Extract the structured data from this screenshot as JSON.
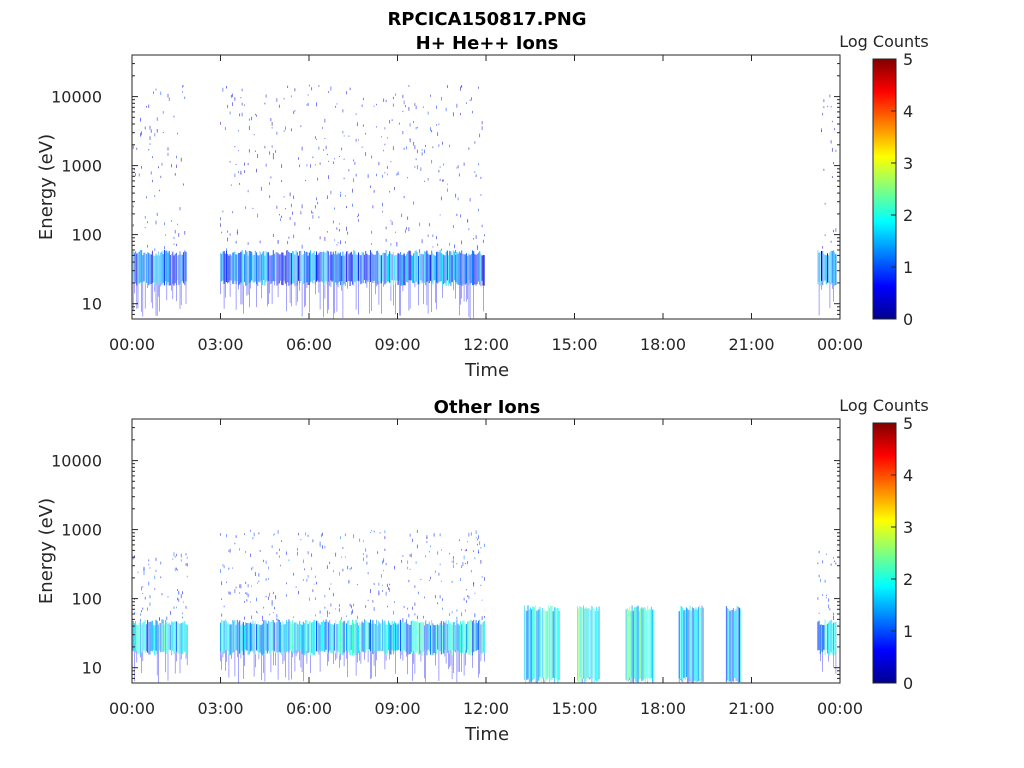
{
  "figure": {
    "title_line1": "RPCICA150817.PNG"
  },
  "colormap": {
    "name": "jet",
    "stops": [
      "#00008f",
      "#0000ff",
      "#0080ff",
      "#00ffff",
      "#80ff80",
      "#ffff00",
      "#ff8000",
      "#ff0000",
      "#800000"
    ]
  },
  "chart_data": [
    {
      "type": "heatmap",
      "title": "H+ He++ Ions",
      "xlabel": "Time",
      "ylabel": "Energy (eV)",
      "yscale": "log",
      "ylim": [
        6,
        40000
      ],
      "xlim": [
        "00:00",
        "24:00"
      ],
      "x_ticks": [
        "00:00",
        "03:00",
        "06:00",
        "09:00",
        "12:00",
        "15:00",
        "18:00",
        "21:00",
        "00:00"
      ],
      "y_ticks": [
        10,
        100,
        1000,
        10000
      ],
      "y_tick_labels": [
        "10",
        "100",
        "1000",
        "10000"
      ],
      "colorbar": {
        "label": "Log Counts",
        "range": [
          0,
          5
        ],
        "ticks": [
          "0",
          "1",
          "2",
          "3",
          "4",
          "5"
        ]
      },
      "data_intervals": [
        {
          "start_hour": 0.0,
          "end_hour": 1.85,
          "band_low_eV": 18,
          "band_high_eV": 60,
          "band_level": 1.1,
          "sparse_max_eV": 15000,
          "sparse_level": 0.6
        },
        {
          "start_hour": 3.0,
          "end_hour": 11.95,
          "band_low_eV": 18,
          "band_high_eV": 60,
          "band_level": 1.1,
          "sparse_max_eV": 15000,
          "sparse_level": 0.6
        },
        {
          "start_hour": 23.25,
          "end_hour": 23.9,
          "band_low_eV": 18,
          "band_high_eV": 60,
          "band_level": 1.1,
          "sparse_max_eV": 15000,
          "sparse_level": 0.6
        }
      ]
    },
    {
      "type": "heatmap",
      "title": "Other Ions",
      "xlabel": "Time",
      "ylabel": "Energy (eV)",
      "yscale": "log",
      "ylim": [
        6,
        40000
      ],
      "xlim": [
        "00:00",
        "24:00"
      ],
      "x_ticks": [
        "00:00",
        "03:00",
        "06:00",
        "09:00",
        "12:00",
        "15:00",
        "18:00",
        "21:00",
        "00:00"
      ],
      "y_ticks": [
        10,
        100,
        1000,
        10000
      ],
      "y_tick_labels": [
        "10",
        "100",
        "1000",
        "10000"
      ],
      "colorbar": {
        "label": "Log Counts",
        "range": [
          0,
          5
        ],
        "ticks": [
          "0",
          "1",
          "2",
          "3",
          "4",
          "5"
        ]
      },
      "data_intervals": [
        {
          "start_hour": 0.0,
          "end_hour": 1.9,
          "band_low_eV": 15,
          "band_high_eV": 50,
          "band_level": 1.6,
          "sparse_max_eV": 500,
          "sparse_level": 0.8
        },
        {
          "start_hour": 3.0,
          "end_hour": 11.95,
          "band_low_eV": 15,
          "band_high_eV": 50,
          "band_level": 1.6,
          "sparse_max_eV": 1000,
          "sparse_level": 0.8
        },
        {
          "start_hour": 13.3,
          "end_hour": 14.5,
          "band_low_eV": 6,
          "band_high_eV": 80,
          "band_level": 1.8,
          "sparse_max_eV": 80,
          "sparse_level": 1.0
        },
        {
          "start_hour": 15.1,
          "end_hour": 15.85,
          "band_low_eV": 6,
          "band_high_eV": 80,
          "band_level": 2.0,
          "sparse_max_eV": 80,
          "sparse_level": 1.0
        },
        {
          "start_hour": 16.75,
          "end_hour": 17.7,
          "band_low_eV": 6,
          "band_high_eV": 80,
          "band_level": 1.8,
          "sparse_max_eV": 80,
          "sparse_level": 1.0
        },
        {
          "start_hour": 18.55,
          "end_hour": 19.4,
          "band_low_eV": 6,
          "band_high_eV": 80,
          "band_level": 1.6,
          "sparse_max_eV": 80,
          "sparse_level": 1.0
        },
        {
          "start_hour": 20.15,
          "end_hour": 20.65,
          "band_low_eV": 6,
          "band_high_eV": 80,
          "band_level": 1.6,
          "sparse_max_eV": 80,
          "sparse_level": 1.0
        },
        {
          "start_hour": 23.25,
          "end_hour": 23.9,
          "band_low_eV": 15,
          "band_high_eV": 50,
          "band_level": 1.6,
          "sparse_max_eV": 500,
          "sparse_level": 0.8
        }
      ]
    }
  ]
}
